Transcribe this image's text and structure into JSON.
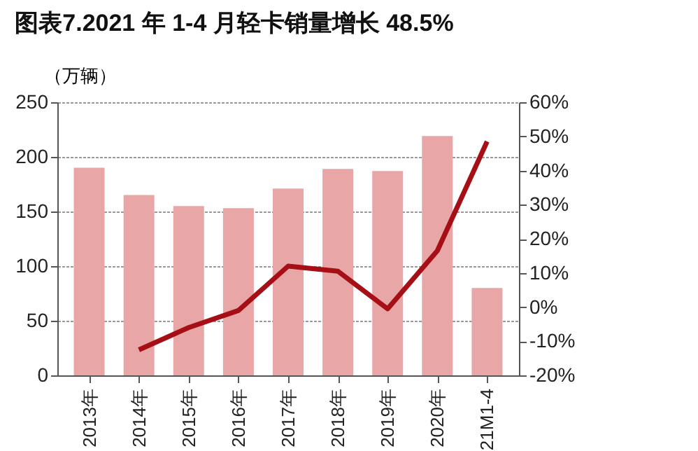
{
  "chart_data": {
    "type": "bar",
    "title": "图表7.2021 年 1-4 月轻卡销量增长 48.5%",
    "ylabel": "（万辆）",
    "categories": [
      "2013年",
      "2014年",
      "2015年",
      "2016年",
      "2017年",
      "2018年",
      "2019年",
      "2020年",
      "21M1-4"
    ],
    "series": [
      {
        "color": "#e8a6a6",
        "values": [
          190,
          165,
          155,
          153,
          171,
          189,
          187,
          219,
          80
        ]
      },
      {
        "type": "line",
        "axis": "y2",
        "color": "#a50f15",
        "values": [
          null,
          -12.5,
          -6,
          -1,
          12,
          10.5,
          -0.5,
          16.5,
          48.5
        ]
      }
    ],
    "ylim": [
      0,
      250
    ],
    "yticks": [
      0,
      50,
      100,
      150,
      200,
      250
    ],
    "y2lim": [
      -20,
      60
    ],
    "y2ticks": [
      {
        "value": -20,
        "label": "-20%"
      },
      {
        "value": -10,
        "label": "-10%"
      },
      {
        "value": 0,
        "label": "0%"
      },
      {
        "value": 10,
        "label": "10%"
      },
      {
        "value": 20,
        "label": "20%"
      },
      {
        "value": 30,
        "label": "30%"
      },
      {
        "value": 40,
        "label": "40%"
      },
      {
        "value": 50,
        "label": "50%"
      },
      {
        "value": 60,
        "label": "60%"
      }
    ],
    "grid": "y"
  }
}
